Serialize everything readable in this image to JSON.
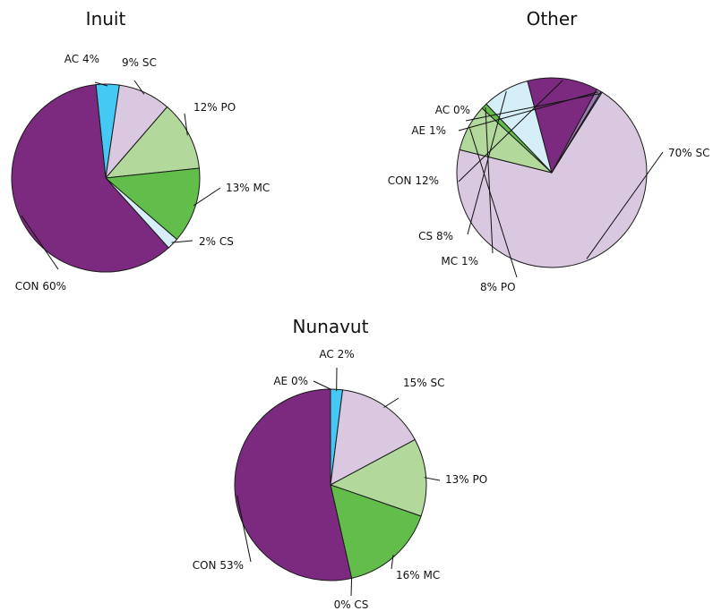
{
  "chart_data": [
    {
      "type": "pie",
      "title": "Inuit",
      "slices": [
        {
          "label": "AC 4%",
          "value": 4,
          "color": "#44c8f4"
        },
        {
          "label": "9% SC",
          "value": 9,
          "color": "#dac7e0"
        },
        {
          "label": "12% PO",
          "value": 12,
          "color": "#b2d89c"
        },
        {
          "label": "13% MC",
          "value": 13,
          "color": "#62bd4a"
        },
        {
          "label": "2% CS",
          "value": 2,
          "color": "#d5eef8"
        },
        {
          "label": "CON 60%",
          "value": 60,
          "color": "#7b2a7f"
        }
      ]
    },
    {
      "type": "pie",
      "title": "Other",
      "slices": [
        {
          "label": "70% SC",
          "value": 70,
          "color": "#dac7e0"
        },
        {
          "label": "8% PO",
          "value": 8,
          "color": "#b2d89c"
        },
        {
          "label": "MC 1%",
          "value": 1,
          "color": "#62bd4a"
        },
        {
          "label": "CS 8%",
          "value": 8,
          "color": "#d5eef8"
        },
        {
          "label": "CON 12%",
          "value": 12,
          "color": "#7b2a7f"
        },
        {
          "label": "AE 1%",
          "value": 0.8,
          "color": "#9b78b0"
        },
        {
          "label": "AC 0%",
          "value": 0.2,
          "color": "#44c8f4"
        }
      ]
    },
    {
      "type": "pie",
      "title": "Nunavut",
      "slices": [
        {
          "label": "AC 2%",
          "value": 2,
          "color": "#44c8f4"
        },
        {
          "label": "15% SC",
          "value": 15,
          "color": "#dac7e0"
        },
        {
          "label": "13% PO",
          "value": 13,
          "color": "#b2d89c"
        },
        {
          "label": "16% MC",
          "value": 16,
          "color": "#62bd4a"
        },
        {
          "label": "0% CS",
          "value": 0,
          "color": "#d5eef8"
        },
        {
          "label": "CON 53%",
          "value": 53,
          "color": "#7b2a7f"
        },
        {
          "label": "AE 0%",
          "value": 0,
          "color": "#9b78b0"
        }
      ]
    }
  ]
}
